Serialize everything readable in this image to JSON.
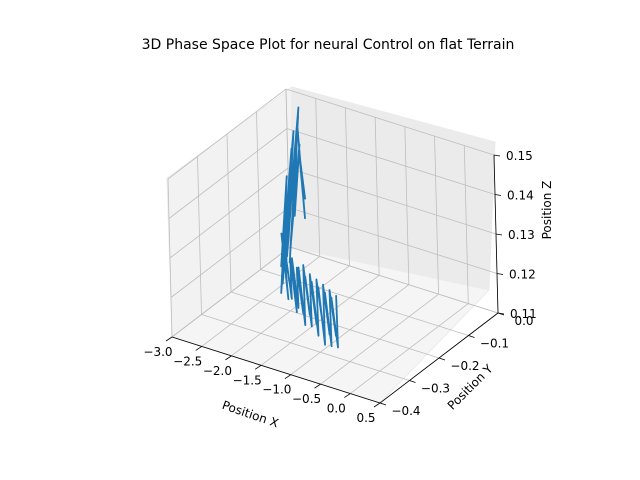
{
  "chart_data": {
    "type": "line",
    "projection": "3d",
    "title": "3D Phase Space Plot for neural Control on flat Terrain",
    "xlabel": "Position X",
    "ylabel": "Position Y",
    "zlabel": "Position Z",
    "xlim": [
      -3.0,
      0.5
    ],
    "ylim": [
      -0.4,
      0.0
    ],
    "zlim": [
      0.11,
      0.15
    ],
    "x_ticks": [
      "−3.0",
      "−2.5",
      "−2.0",
      "−1.5",
      "−1.0",
      "−0.5",
      "0.0",
      "0.5"
    ],
    "y_ticks": [
      "−0.4",
      "−0.3",
      "−0.2",
      "−0.1",
      "0.0"
    ],
    "z_ticks": [
      "0.11",
      "0.12",
      "0.13",
      "0.14",
      "0.15"
    ],
    "grid": true,
    "series": [
      {
        "color": "#1f77b4",
        "points": [
          [
            -2.62,
            -0.02,
            0.125
          ],
          [
            -2.6,
            -0.04,
            0.138
          ],
          [
            -2.58,
            -0.03,
            0.121
          ],
          [
            -2.57,
            -0.05,
            0.146
          ],
          [
            -2.55,
            -0.07,
            0.124
          ],
          [
            -2.54,
            -0.05,
            0.141
          ],
          [
            -2.52,
            -0.09,
            0.119
          ],
          [
            -2.5,
            -0.06,
            0.149
          ],
          [
            -2.48,
            -0.1,
            0.127
          ],
          [
            -2.47,
            -0.08,
            0.136
          ],
          [
            -2.45,
            -0.11,
            0.115
          ],
          [
            -2.44,
            -0.07,
            0.152
          ],
          [
            -2.42,
            -0.12,
            0.123
          ],
          [
            -2.41,
            -0.09,
            0.143
          ],
          [
            -2.39,
            -0.13,
            0.118
          ],
          [
            -2.38,
            -0.1,
            0.148
          ],
          [
            -2.36,
            -0.14,
            0.126
          ],
          [
            -2.35,
            -0.11,
            0.139
          ],
          [
            -2.33,
            -0.15,
            0.116
          ],
          [
            -2.32,
            -0.12,
            0.145
          ],
          [
            -2.3,
            -0.16,
            0.121
          ],
          [
            -2.29,
            -0.14,
            0.135
          ],
          [
            -2.27,
            -0.17,
            0.114
          ],
          [
            -2.26,
            -0.15,
            0.14
          ],
          [
            -2.24,
            -0.18,
            0.119
          ],
          [
            -2.22,
            -0.16,
            0.132
          ],
          [
            -2.2,
            -0.19,
            0.113
          ],
          [
            -2.18,
            -0.17,
            0.137
          ],
          [
            -2.15,
            -0.18,
            0.118
          ],
          [
            -2.12,
            -0.2,
            0.129
          ],
          [
            -2.08,
            -0.19,
            0.112
          ],
          [
            -2.04,
            -0.21,
            0.127
          ],
          [
            -2.0,
            -0.2,
            0.117
          ],
          [
            -1.96,
            -0.22,
            0.126
          ],
          [
            -1.92,
            -0.21,
            0.114
          ],
          [
            -1.88,
            -0.22,
            0.125
          ],
          [
            -1.84,
            -0.21,
            0.111
          ],
          [
            -1.8,
            -0.23,
            0.126
          ],
          [
            -1.76,
            -0.22,
            0.113
          ],
          [
            -1.72,
            -0.23,
            0.124
          ],
          [
            -1.68,
            -0.22,
            0.112
          ],
          [
            -1.64,
            -0.24,
            0.125
          ],
          [
            -1.6,
            -0.23,
            0.11
          ],
          [
            -1.56,
            -0.24,
            0.126
          ],
          [
            -1.52,
            -0.23,
            0.113
          ],
          [
            -1.48,
            -0.25,
            0.124
          ],
          [
            -1.44,
            -0.24,
            0.111
          ],
          [
            -1.4,
            -0.25,
            0.125
          ],
          [
            -1.36,
            -0.24,
            0.112
          ],
          [
            -1.32,
            -0.26,
            0.124
          ],
          [
            -1.28,
            -0.25,
            0.11
          ],
          [
            -1.24,
            -0.26,
            0.125
          ],
          [
            -1.2,
            -0.25,
            0.113
          ],
          [
            -1.16,
            -0.27,
            0.124
          ],
          [
            -1.12,
            -0.26,
            0.109
          ],
          [
            -1.08,
            -0.27,
            0.125
          ],
          [
            -1.04,
            -0.26,
            0.112
          ],
          [
            -1.0,
            -0.28,
            0.124
          ],
          [
            -0.96,
            -0.27,
            0.11
          ],
          [
            -0.92,
            -0.28,
            0.125
          ],
          [
            -0.88,
            -0.27,
            0.113
          ],
          [
            -0.84,
            -0.29,
            0.124
          ],
          [
            -0.8,
            -0.28,
            0.111
          ],
          [
            -0.76,
            -0.29,
            0.125
          ]
        ]
      }
    ]
  }
}
